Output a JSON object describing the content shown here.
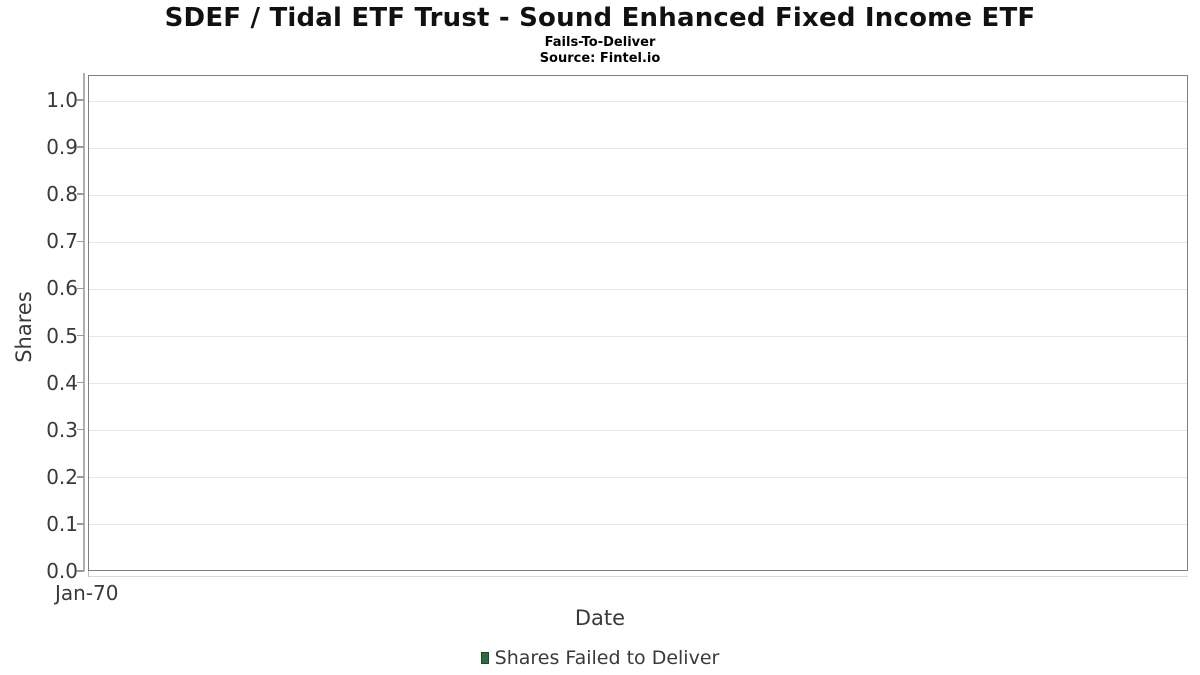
{
  "header": {
    "title": "SDEF / Tidal ETF Trust - Sound Enhanced Fixed Income ETF",
    "subtitle": "Fails-To-Deliver",
    "source": "Source: Fintel.io"
  },
  "axes": {
    "x_label": "Date",
    "y_label": "Shares"
  },
  "legend": {
    "items": [
      {
        "label": "Shares Failed to Deliver",
        "marker_color": "#2a6b3f",
        "marker_border": "#1d4a2c"
      }
    ]
  },
  "chart_data": {
    "type": "bar",
    "title": "SDEF / Tidal ETF Trust - Sound Enhanced Fixed Income ETF",
    "subtitle": "Fails-To-Deliver",
    "source": "Source: Fintel.io",
    "xlabel": "Date",
    "ylabel": "Shares",
    "x_ticks": [
      {
        "label": "Jan-70",
        "position": 0
      }
    ],
    "y_ticks": [
      {
        "label": "0.0",
        "value": 0.0
      },
      {
        "label": "0.1",
        "value": 0.1
      },
      {
        "label": "0.2",
        "value": 0.2
      },
      {
        "label": "0.3",
        "value": 0.3
      },
      {
        "label": "0.4",
        "value": 0.4
      },
      {
        "label": "0.5",
        "value": 0.5
      },
      {
        "label": "0.6",
        "value": 0.6
      },
      {
        "label": "0.7",
        "value": 0.7
      },
      {
        "label": "0.8",
        "value": 0.8
      },
      {
        "label": "0.9",
        "value": 0.9
      },
      {
        "label": "1.0",
        "value": 1.0
      }
    ],
    "ylim": [
      0.0,
      1.053
    ],
    "grid": true,
    "legend_position": "bottom-center",
    "series": [
      {
        "name": "Shares Failed to Deliver",
        "color": "#2a6b3f",
        "values": []
      }
    ]
  },
  "colors": {
    "plot_border": "#7f7f7f",
    "gridline": "#e7e7e7",
    "y_axis_spine": "#b0b0b0",
    "x_axis_line": "#d9d9d9",
    "tick": "#999999",
    "tick_text": "#3a3a3a",
    "title_text": "#111111"
  }
}
